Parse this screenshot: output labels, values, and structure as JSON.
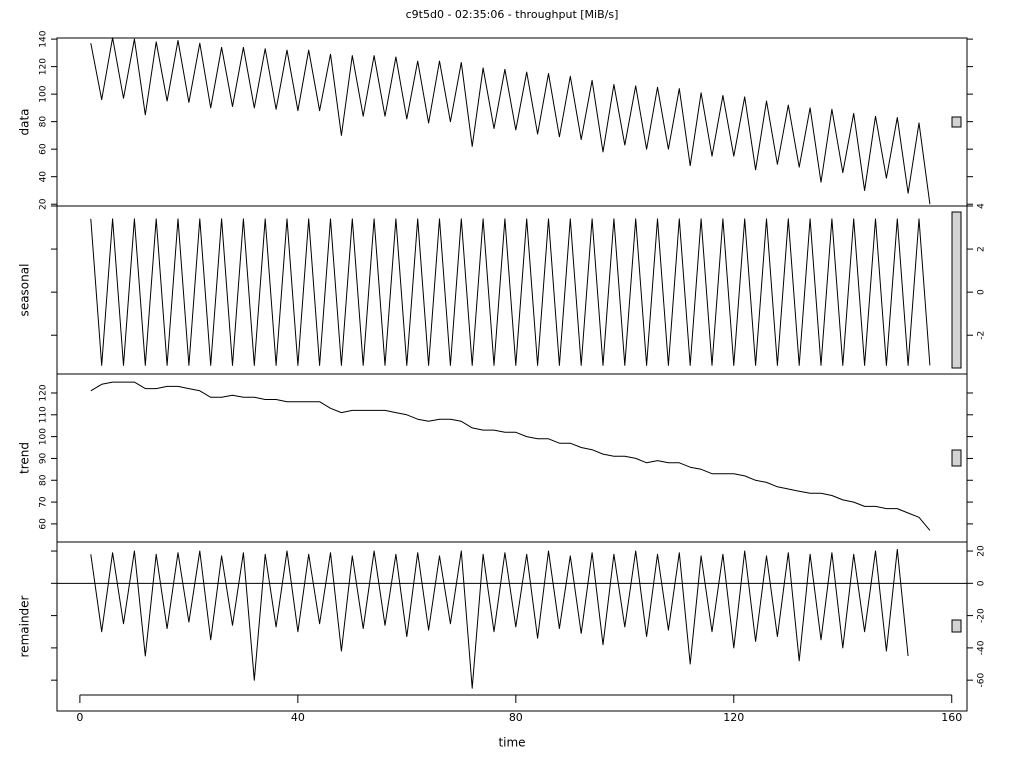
{
  "chart_data": {
    "type": "line",
    "title": "c9t5d0 - 02:35:06 - throughput [MiB/s]",
    "xlabel": "time",
    "color": "#000000",
    "xlim": [
      -4.2,
      162.8
    ],
    "xticks": [
      0,
      40,
      80,
      120,
      160
    ],
    "x": [
      2,
      4,
      6,
      8,
      10,
      12,
      14,
      16,
      18,
      20,
      22,
      24,
      26,
      28,
      30,
      32,
      34,
      36,
      38,
      40,
      42,
      44,
      46,
      48,
      50,
      52,
      54,
      56,
      58,
      60,
      62,
      64,
      66,
      68,
      70,
      72,
      74,
      76,
      78,
      80,
      82,
      84,
      86,
      88,
      90,
      92,
      94,
      96,
      98,
      100,
      102,
      104,
      106,
      108,
      110,
      112,
      114,
      116,
      118,
      120,
      122,
      124,
      126,
      128,
      130,
      132,
      134,
      136,
      138,
      140,
      142,
      144,
      146,
      148,
      150,
      152,
      154,
      156
    ],
    "panels": [
      {
        "ylabel": "data",
        "axis_side": "left",
        "ylim": [
          18.7,
          140.8
        ],
        "yticks": [
          20,
          40,
          60,
          80,
          100,
          120,
          140
        ],
        "values": [
          137,
          96,
          141,
          97,
          140,
          85,
          138,
          95,
          139,
          94,
          137,
          90,
          134,
          91,
          134,
          90,
          133,
          89,
          132,
          88,
          132,
          88,
          129,
          70,
          128,
          84,
          128,
          84,
          127,
          82,
          124,
          79,
          124,
          80,
          123,
          62,
          119,
          75,
          118,
          74,
          116,
          71,
          115,
          69,
          113,
          67,
          110,
          58,
          107,
          63,
          106,
          60,
          105,
          60,
          104,
          48,
          101,
          55,
          99,
          55,
          98,
          45,
          95,
          49,
          92,
          47,
          90,
          36,
          89,
          43,
          86,
          30,
          84,
          39,
          83,
          28,
          79,
          20
        ]
      },
      {
        "ylabel": "seasonal",
        "axis_side": "right",
        "ylim": [
          -3.8,
          4.0
        ],
        "yticks": [
          -2,
          0,
          2,
          4
        ],
        "values": [
          3.4,
          -3.4,
          3.4,
          -3.4,
          3.4,
          -3.4,
          3.4,
          -3.4,
          3.4,
          -3.4,
          3.4,
          -3.4,
          3.4,
          -3.4,
          3.4,
          -3.4,
          3.4,
          -3.4,
          3.4,
          -3.4,
          3.4,
          -3.4,
          3.4,
          -3.4,
          3.4,
          -3.4,
          3.4,
          -3.4,
          3.4,
          -3.4,
          3.4,
          -3.4,
          3.4,
          -3.4,
          3.4,
          -3.4,
          3.4,
          -3.4,
          3.4,
          -3.4,
          3.4,
          -3.4,
          3.4,
          -3.4,
          3.4,
          -3.4,
          3.4,
          -3.4,
          3.4,
          -3.4,
          3.4,
          -3.4,
          3.4,
          -3.4,
          3.4,
          -3.4,
          3.4,
          -3.4,
          3.4,
          -3.4,
          3.4,
          -3.4,
          3.4,
          -3.4,
          3.4,
          -3.4,
          3.4,
          -3.4,
          3.4,
          -3.4,
          3.4,
          -3.4,
          3.4,
          -3.4,
          3.4,
          -3.4,
          3.4,
          -3.4
        ]
      },
      {
        "ylabel": "trend",
        "axis_side": "left",
        "ylim": [
          51.7,
          128.7
        ],
        "yticks": [
          60,
          70,
          80,
          90,
          100,
          110,
          120
        ],
        "values": [
          121,
          124,
          125,
          125,
          125,
          122,
          122,
          123,
          123,
          122,
          121,
          118,
          118,
          119,
          118,
          118,
          117,
          117,
          116,
          116,
          116,
          116,
          113,
          111,
          112,
          112,
          112,
          112,
          111,
          110,
          108,
          107,
          108,
          108,
          107,
          104,
          103,
          103,
          102,
          102,
          100,
          99,
          99,
          97,
          97,
          95,
          94,
          92,
          91,
          91,
          90,
          88,
          89,
          88,
          88,
          86,
          85,
          83,
          83,
          83,
          82,
          80,
          79,
          77,
          76,
          75,
          74,
          74,
          73,
          71,
          70,
          68,
          68,
          67,
          67,
          65,
          63,
          57
        ]
      },
      {
        "ylabel": "remainder",
        "axis_side": "right",
        "ylim": [
          -79.1,
          25.6
        ],
        "yticks": [
          -60,
          -40,
          -20,
          0,
          20
        ],
        "hline": 0,
        "values": [
          18,
          -30,
          19,
          -25,
          20,
          -45,
          18,
          -28,
          19,
          -24,
          20,
          -35,
          17,
          -26,
          19,
          -60,
          18,
          -27,
          20,
          -30,
          18,
          -25,
          19,
          -42,
          17,
          -28,
          20,
          -26,
          18,
          -33,
          19,
          -29,
          17,
          -25,
          20,
          -65,
          18,
          -30,
          19,
          -27,
          18,
          -34,
          20,
          -28,
          17,
          -31,
          19,
          -38,
          18,
          -27,
          20,
          -33,
          18,
          -29,
          19,
          -50,
          17,
          -30,
          18,
          -40,
          20,
          -36,
          17,
          -33,
          19,
          -48,
          18,
          -35,
          19,
          -40,
          18,
          -30,
          20,
          -42,
          21,
          -45
        ]
      }
    ]
  }
}
